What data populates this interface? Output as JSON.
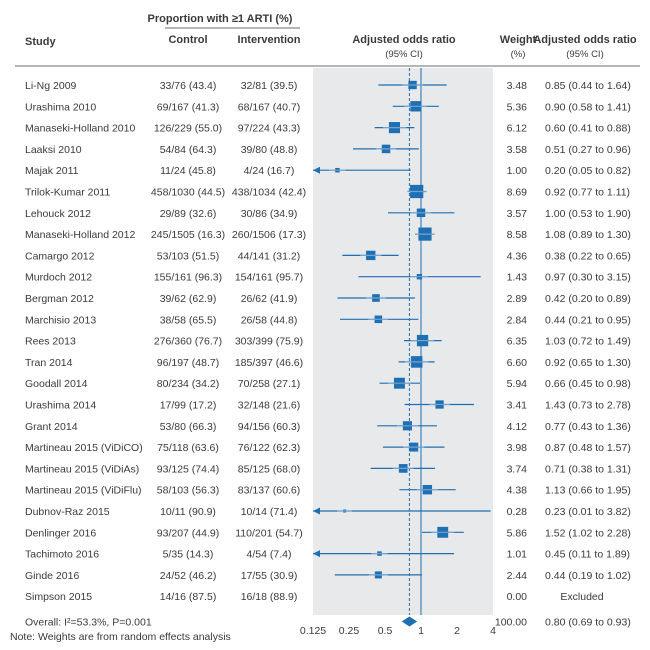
{
  "headers": {
    "study": "Study",
    "proportion": "Proportion with ≥1 ARTI (%)",
    "control": "Control",
    "intervention": "Intervention",
    "or_plot_line1": "Adjusted odds ratio",
    "or_plot_line2": "(95% CI)",
    "weight_line1": "Weight",
    "weight_line2": "(%)",
    "or_text_line1": "Adjusted odds ratio",
    "or_text_line2": "(95% CI)"
  },
  "footnote": "Note: Weights are from random effects analysis",
  "colors": {
    "square": "#1f6fb3",
    "line": "#1f6fb3",
    "ci_light": "#a9c7e3",
    "shade": "#e8e9ea",
    "axis": "#3a3a3a",
    "text": "#3a3a3a"
  },
  "chart_data": {
    "type": "forest",
    "scale": "log",
    "xlim": [
      0.125,
      4
    ],
    "xticks": [
      {
        "value": 0.125,
        "label": "0.125"
      },
      {
        "value": 0.25,
        "label": "0.25"
      },
      {
        "value": 0.5,
        "label": "0.5"
      },
      {
        "value": 1,
        "label": "1"
      },
      {
        "value": 2,
        "label": "2"
      },
      {
        "value": 4,
        "label": "4"
      }
    ],
    "reference_line": 1,
    "pooled_line": 0.8,
    "studies": [
      {
        "name": "Li-Ng 2009",
        "control": "33/76 (43.4)",
        "intervention": "32/81 (39.5)",
        "weight": "3.48",
        "or_text": "0.85 (0.44 to 1.64)",
        "or": 0.85,
        "lo": 0.44,
        "hi": 1.64
      },
      {
        "name": "Urashima 2010",
        "control": "69/167 (41.3)",
        "intervention": "68/167 (40.7)",
        "weight": "5.36",
        "or_text": "0.90 (0.58 to 1.41)",
        "or": 0.9,
        "lo": 0.58,
        "hi": 1.41
      },
      {
        "name": "Manaseki-Holland 2010",
        "control": "126/229 (55.0)",
        "intervention": "97/224 (43.3)",
        "weight": "6.12",
        "or_text": "0.60 (0.41 to 0.88)",
        "or": 0.6,
        "lo": 0.41,
        "hi": 0.88
      },
      {
        "name": "Laaksi 2010",
        "control": "54/84 (64.3)",
        "intervention": "39/80 (48.8)",
        "weight": "3.58",
        "or_text": "0.51 (0.27 to 0.96)",
        "or": 0.51,
        "lo": 0.27,
        "hi": 0.96
      },
      {
        "name": "Majak 2011",
        "control": "11/24 (45.8)",
        "intervention": "4/24 (16.7)",
        "weight": "1.00",
        "or_text": "0.20 (0.05 to 0.82)",
        "or": 0.2,
        "lo": 0.05,
        "hi": 0.82
      },
      {
        "name": "Trilok-Kumar 2011",
        "control": "458/1030 (44.5)",
        "intervention": "438/1034 (42.4)",
        "weight": "8.69",
        "or_text": "0.92 (0.77 to 1.11)",
        "or": 0.92,
        "lo": 0.77,
        "hi": 1.11
      },
      {
        "name": "Lehouck 2012",
        "control": "29/89 (32.6)",
        "intervention": "30/86 (34.9)",
        "weight": "3.57",
        "or_text": "1.00 (0.53 to 1.90)",
        "or": 1.0,
        "lo": 0.53,
        "hi": 1.9
      },
      {
        "name": "Manaseki-Holland 2012",
        "control": "245/1505 (16.3)",
        "intervention": "260/1506 (17.3)",
        "weight": "8.58",
        "or_text": "1.08 (0.89 to 1.30)",
        "or": 1.08,
        "lo": 0.89,
        "hi": 1.3
      },
      {
        "name": "Camargo 2012",
        "control": "53/103 (51.5)",
        "intervention": "44/141 (31.2)",
        "weight": "4.36",
        "or_text": "0.38 (0.22 to 0.65)",
        "or": 0.38,
        "lo": 0.22,
        "hi": 0.65
      },
      {
        "name": "Murdoch 2012",
        "control": "155/161 (96.3)",
        "intervention": "154/161 (95.7)",
        "weight": "1.43",
        "or_text": "0.97 (0.30 to 3.15)",
        "or": 0.97,
        "lo": 0.3,
        "hi": 3.15
      },
      {
        "name": "Bergman 2012",
        "control": "39/62 (62.9)",
        "intervention": "26/62 (41.9)",
        "weight": "2.89",
        "or_text": "0.42 (0.20 to 0.89)",
        "or": 0.42,
        "lo": 0.2,
        "hi": 0.89
      },
      {
        "name": "Marchisio 2013",
        "control": "38/58 (65.5)",
        "intervention": "26/58 (44.8)",
        "weight": "2.84",
        "or_text": "0.44 (0.21 to 0.95)",
        "or": 0.44,
        "lo": 0.21,
        "hi": 0.95
      },
      {
        "name": "Rees 2013",
        "control": "276/360 (76.7)",
        "intervention": "303/399 (75.9)",
        "weight": "6.35",
        "or_text": "1.03 (0.72 to 1.49)",
        "or": 1.03,
        "lo": 0.72,
        "hi": 1.49
      },
      {
        "name": "Tran 2014",
        "control": "96/197 (48.7)",
        "intervention": "185/397 (46.6)",
        "weight": "6.60",
        "or_text": "0.92 (0.65 to 1.30)",
        "or": 0.92,
        "lo": 0.65,
        "hi": 1.3
      },
      {
        "name": "Goodall 2014",
        "control": "80/234 (34.2)",
        "intervention": "70/258 (27.1)",
        "weight": "5.94",
        "or_text": "0.66 (0.45 to 0.98)",
        "or": 0.66,
        "lo": 0.45,
        "hi": 0.98
      },
      {
        "name": "Urashima 2014",
        "control": "17/99 (17.2)",
        "intervention": "32/148 (21.6)",
        "weight": "3.41",
        "or_text": "1.43 (0.73 to 2.78)",
        "or": 1.43,
        "lo": 0.73,
        "hi": 2.78
      },
      {
        "name": "Grant 2014",
        "control": "53/80 (66.3)",
        "intervention": "94/156 (60.3)",
        "weight": "4.12",
        "or_text": "0.77 (0.43 to 1.36)",
        "or": 0.77,
        "lo": 0.43,
        "hi": 1.36
      },
      {
        "name": "Martineau 2015 (ViDiCO)",
        "control": "75/118 (63.6)",
        "intervention": "76/122 (62.3)",
        "weight": "3.98",
        "or_text": "0.87 (0.48 to 1.57)",
        "or": 0.87,
        "lo": 0.48,
        "hi": 1.57
      },
      {
        "name": "Martineau 2015 (ViDiAs)",
        "control": "93/125 (74.4)",
        "intervention": "85/125 (68.0)",
        "weight": "3.74",
        "or_text": "0.71 (0.38 to 1.31)",
        "or": 0.71,
        "lo": 0.38,
        "hi": 1.31
      },
      {
        "name": "Martineau 2015 (ViDiFlu)",
        "control": "58/103 (56.3)",
        "intervention": "83/137 (60.6)",
        "weight": "4.38",
        "or_text": "1.13 (0.66 to 1.95)",
        "or": 1.13,
        "lo": 0.66,
        "hi": 1.95
      },
      {
        "name": "Dubnov-Raz 2015",
        "control": "10/11 (90.9)",
        "intervention": "10/14 (71.4)",
        "weight": "0.28",
        "or_text": "0.23 (0.01 to 3.82)",
        "or": 0.23,
        "lo": 0.01,
        "hi": 3.82
      },
      {
        "name": "Denlinger 2016",
        "control": "93/207 (44.9)",
        "intervention": "110/201 (54.7)",
        "weight": "5.86",
        "or_text": "1.52 (1.02 to 2.28)",
        "or": 1.52,
        "lo": 1.02,
        "hi": 2.28
      },
      {
        "name": "Tachimoto 2016",
        "control": "5/35 (14.3)",
        "intervention": "4/54 (7.4)",
        "weight": "1.01",
        "or_text": "0.45 (0.11 to 1.89)",
        "or": 0.45,
        "lo": 0.11,
        "hi": 1.89
      },
      {
        "name": "Ginde 2016",
        "control": "24/52 (46.2)",
        "intervention": "17/55 (30.9)",
        "weight": "2.44",
        "or_text": "0.44 (0.19 to 1.02)",
        "or": 0.44,
        "lo": 0.19,
        "hi": 1.02
      },
      {
        "name": "Simpson 2015",
        "control": "14/16 (87.5)",
        "intervention": "16/18 (88.9)",
        "weight": "0.00",
        "or_text": "Excluded",
        "or": null,
        "lo": null,
        "hi": null
      }
    ],
    "overall": {
      "name": "Overall: I²=53.3%, P=0.001",
      "weight": "100.00",
      "or_text": "0.80 (0.69 to 0.93)",
      "or": 0.8,
      "lo": 0.69,
      "hi": 0.93
    }
  }
}
